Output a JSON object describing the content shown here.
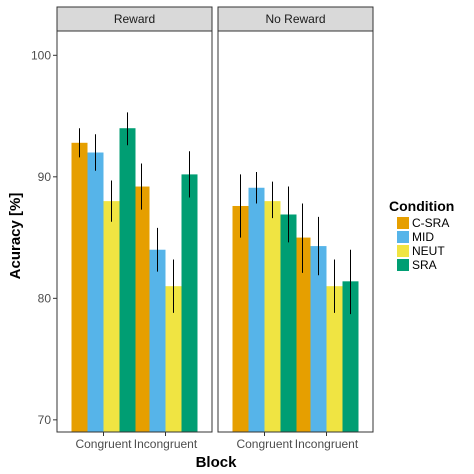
{
  "chart_data": {
    "type": "bar",
    "xlabel": "Block",
    "ylabel": "Acuracy [%]",
    "ylim": [
      69,
      102
    ],
    "yticks": [
      70,
      80,
      90,
      100
    ],
    "grid": false,
    "legend": {
      "title": "Condition",
      "placement": "right",
      "entries": [
        {
          "name": "C-SRA",
          "color": "#E69F00"
        },
        {
          "name": "MID",
          "color": "#56B4E9"
        },
        {
          "name": "NEUT",
          "color": "#F0E442"
        },
        {
          "name": "SRA",
          "color": "#009E73"
        }
      ]
    },
    "facets": [
      {
        "label": "Reward",
        "categories": [
          "Congruent",
          "Incongruent"
        ],
        "series": [
          {
            "name": "C-SRA",
            "values": [
              92.8,
              89.2
            ],
            "err_low": [
              91.6,
              87.3
            ],
            "err_high": [
              94.0,
              91.1
            ]
          },
          {
            "name": "MID",
            "values": [
              92.0,
              84.0
            ],
            "err_low": [
              90.5,
              82.2
            ],
            "err_high": [
              93.5,
              85.8
            ]
          },
          {
            "name": "NEUT",
            "values": [
              88.0,
              81.0
            ],
            "err_low": [
              86.3,
              78.8
            ],
            "err_high": [
              89.7,
              83.2
            ]
          },
          {
            "name": "SRA",
            "values": [
              94.0,
              90.2
            ],
            "err_low": [
              92.6,
              88.3
            ],
            "err_high": [
              95.3,
              92.1
            ]
          }
        ]
      },
      {
        "label": "No Reward",
        "categories": [
          "Congruent",
          "Incongruent"
        ],
        "series": [
          {
            "name": "C-SRA",
            "values": [
              87.6,
              85.0
            ],
            "err_low": [
              85.0,
              82.1
            ],
            "err_high": [
              90.2,
              87.8
            ]
          },
          {
            "name": "MID",
            "values": [
              89.1,
              84.3
            ],
            "err_low": [
              87.8,
              81.9
            ],
            "err_high": [
              90.4,
              86.7
            ]
          },
          {
            "name": "NEUT",
            "values": [
              88.0,
              81.0
            ],
            "err_low": [
              86.6,
              78.8
            ],
            "err_high": [
              89.6,
              83.2
            ]
          },
          {
            "name": "SRA",
            "values": [
              86.9,
              81.4
            ],
            "err_low": [
              84.6,
              78.7
            ],
            "err_high": [
              89.2,
              84.0
            ]
          }
        ]
      }
    ]
  }
}
